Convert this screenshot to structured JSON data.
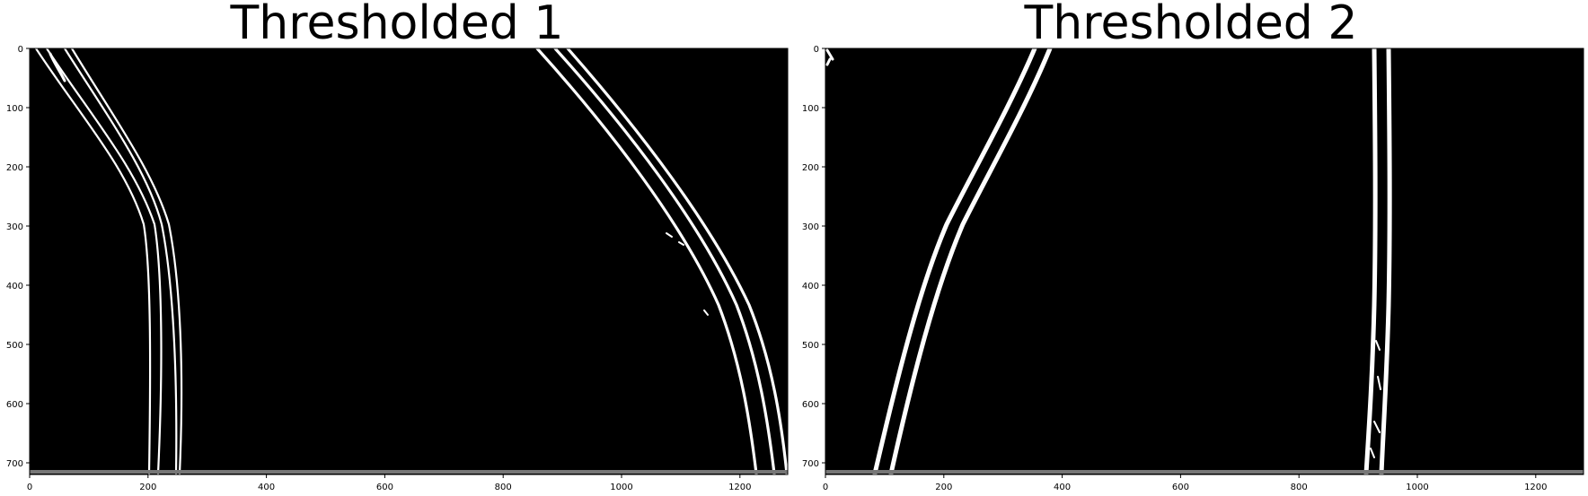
{
  "panels": [
    {
      "title": "Thresholded 1",
      "x_ticks": [
        "0",
        "200",
        "400",
        "600",
        "800",
        "1000",
        "1200"
      ],
      "y_ticks": [
        "0",
        "100",
        "200",
        "300",
        "400",
        "500",
        "600",
        "700"
      ],
      "background": "#000000",
      "line_color": "#ffffff"
    },
    {
      "title": "Thresholded 2",
      "x_ticks": [
        "0",
        "200",
        "400",
        "600",
        "800",
        "1000",
        "1200"
      ],
      "y_ticks": [
        "0",
        "100",
        "200",
        "300",
        "400",
        "500",
        "600",
        "700"
      ],
      "background": "#000000",
      "line_color": "#ffffff"
    }
  ]
}
